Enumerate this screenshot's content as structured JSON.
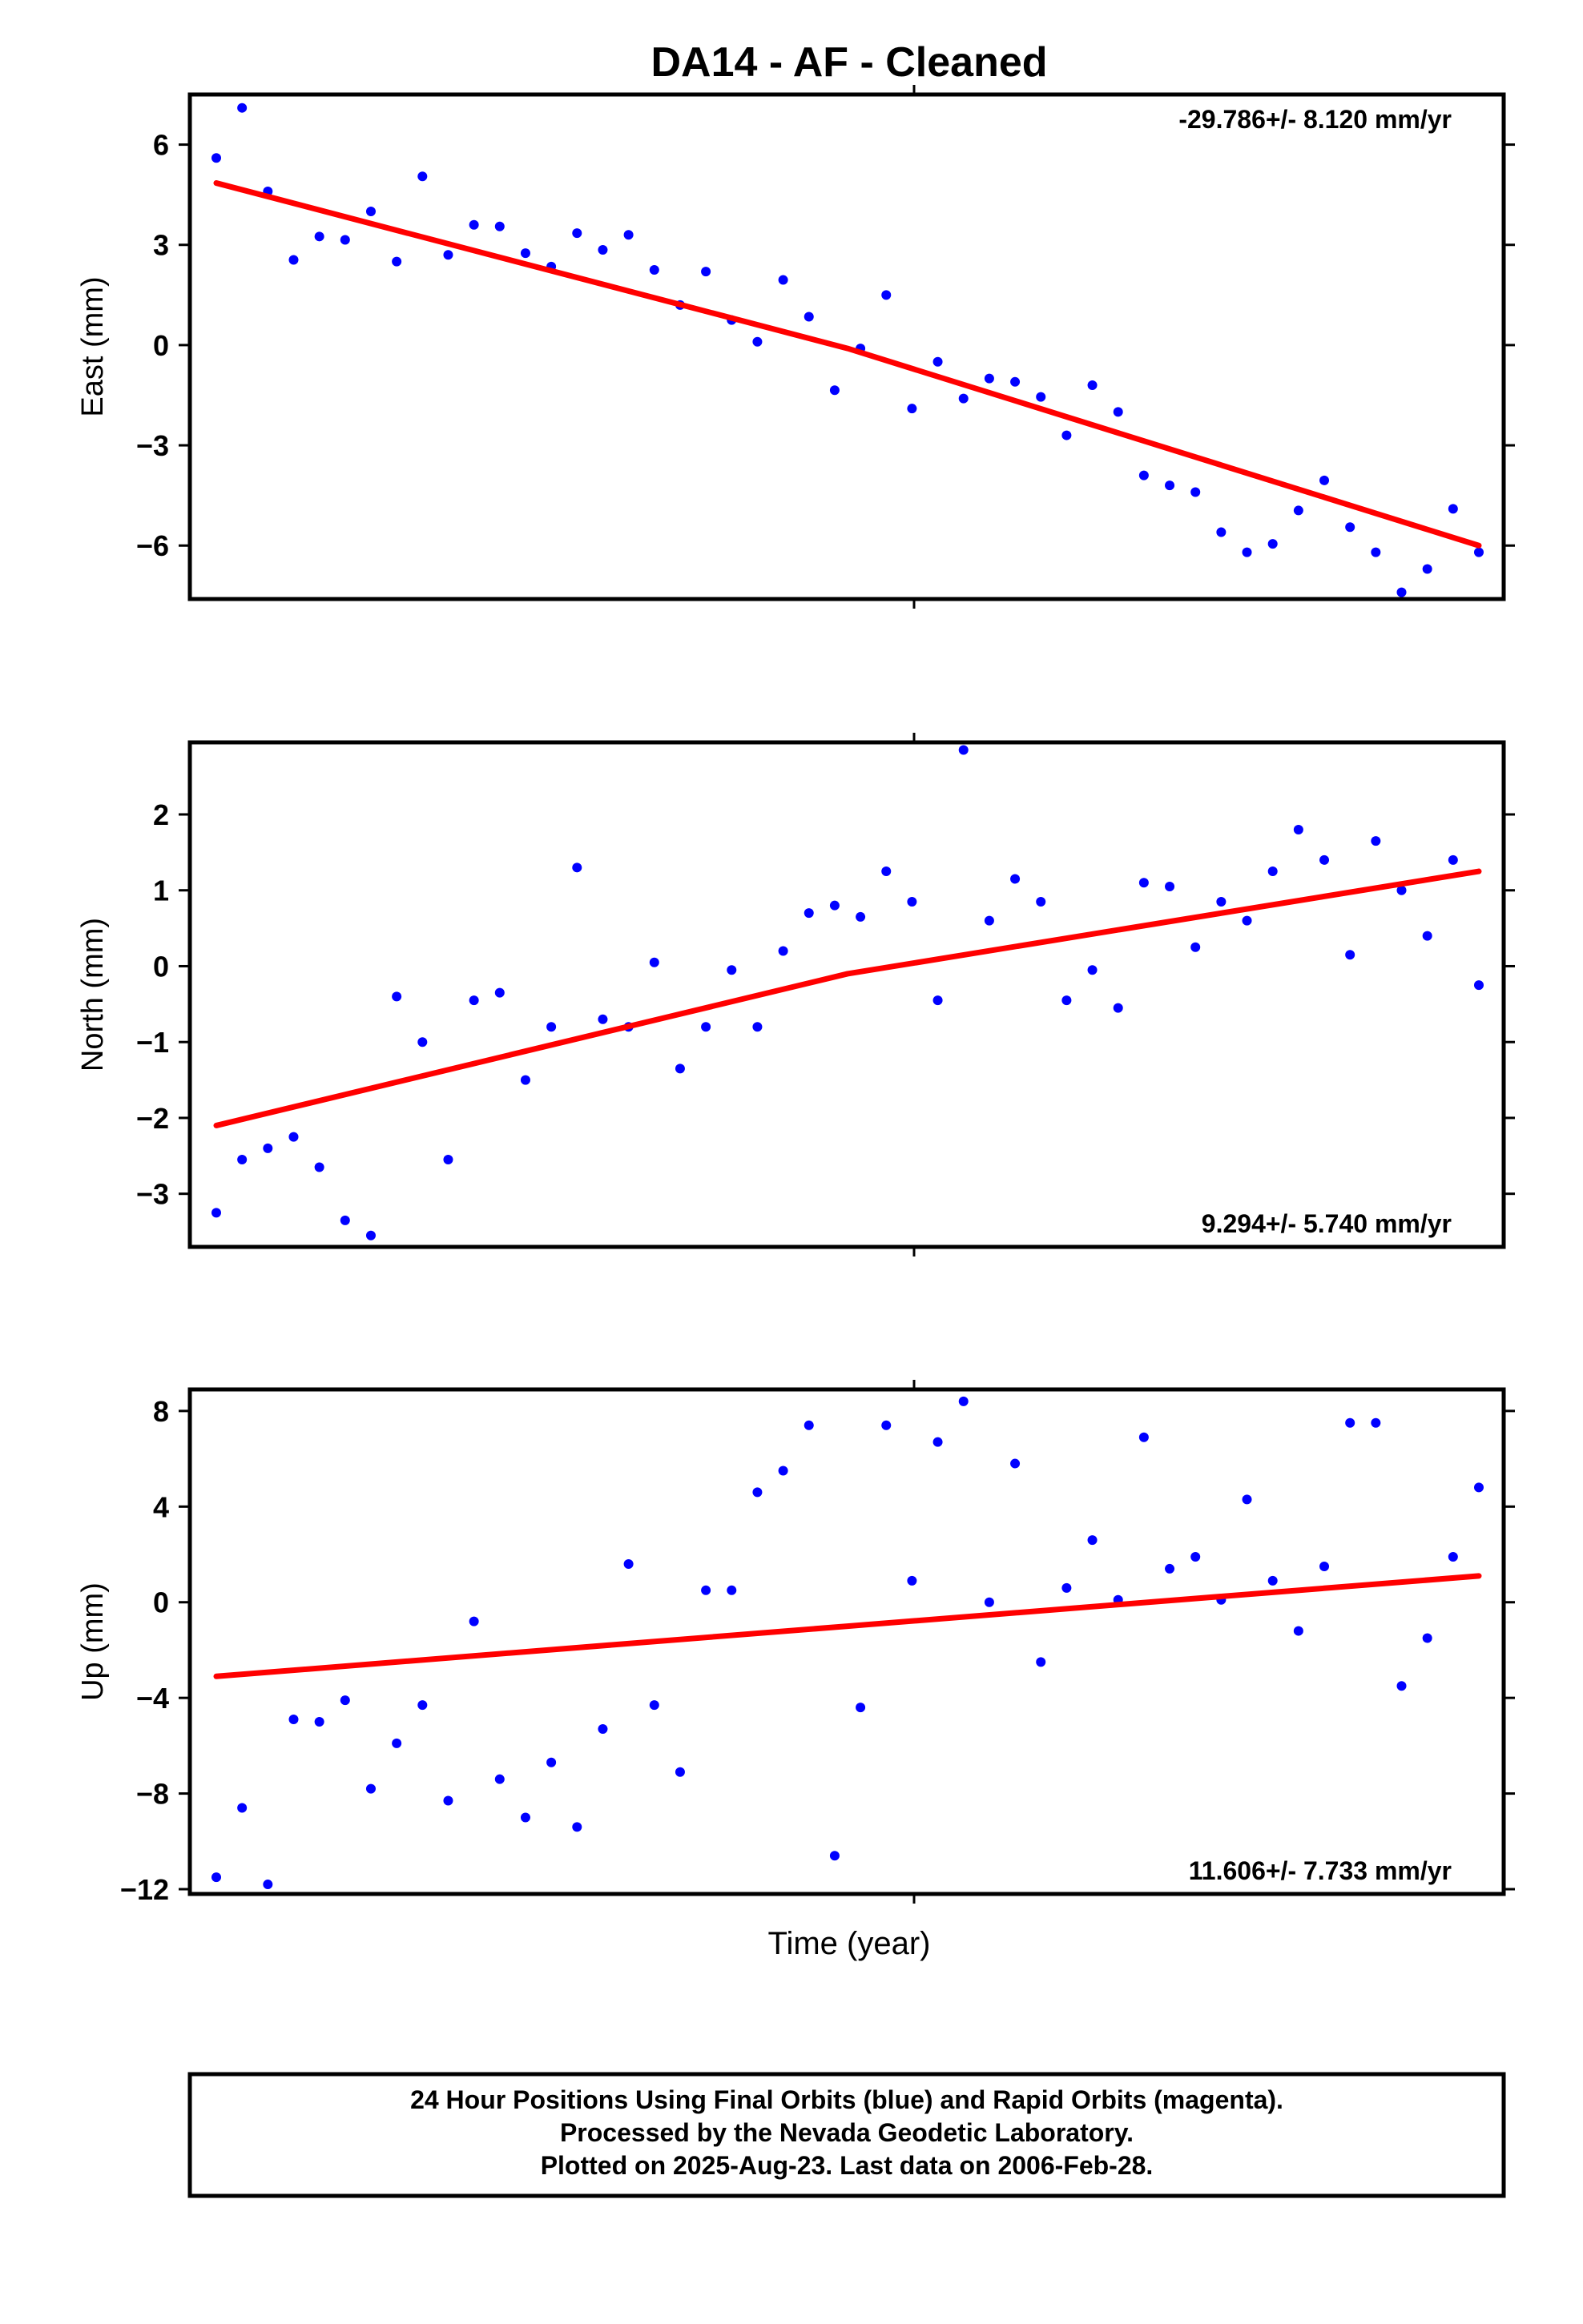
{
  "title": "DA14  - AF - Cleaned",
  "xlabel": "Time (year)",
  "footer": [
    "24 Hour Positions Using Final Orbits (blue) and Rapid Orbits (magenta).",
    "Processed by the Nevada Geodetic Laboratory.",
    "Plotted on 2025-Aug-23. Last data on 2006-Feb-28."
  ],
  "colors": {
    "points": "#0000ff",
    "fit": "#ff0000",
    "frame": "#000000"
  },
  "chart_data": [
    {
      "type": "scatter",
      "panel": "east",
      "ylabel": "East (mm)",
      "ylim": [
        -7.6,
        7.5
      ],
      "yticks": [
        6,
        3,
        0,
        -3,
        -6
      ],
      "ytick_labels": [
        "6",
        "3",
        "0",
        "−3",
        "−6"
      ],
      "rate_label": "-29.786+/- 8.120 mm/yr",
      "rate_position": "top-right",
      "x_index": [
        0,
        1,
        2,
        3,
        4,
        5,
        6,
        7,
        8,
        9,
        10,
        11,
        12,
        13,
        14,
        15,
        16,
        17,
        18,
        19,
        20,
        21,
        22,
        23,
        24,
        25,
        26,
        27,
        28,
        29,
        30,
        31,
        32,
        33,
        34,
        35,
        36,
        37,
        38,
        39,
        40,
        41,
        42,
        43,
        44,
        45,
        46,
        47,
        48,
        49
      ],
      "y": [
        5.6,
        7.1,
        4.6,
        2.55,
        3.25,
        3.15,
        4.0,
        2.5,
        5.05,
        2.7,
        3.6,
        3.55,
        2.75,
        2.35,
        3.35,
        2.85,
        3.3,
        2.25,
        1.2,
        2.2,
        0.75,
        0.1,
        1.95,
        0.85,
        -1.35,
        -0.1,
        1.5,
        -1.9,
        -0.5,
        -1.6,
        -1.0,
        -1.1,
        -1.55,
        -2.7,
        -1.2,
        -2.0,
        -3.9,
        -4.2,
        -4.4,
        -5.6,
        -6.2,
        -5.95,
        -4.95,
        -4.05,
        -5.45,
        -6.2,
        -7.4,
        -6.7,
        -4.9,
        -6.2
      ],
      "fit": {
        "x_index": [
          0,
          24.5,
          49
        ],
        "y": [
          4.85,
          -0.1,
          -6.0
        ]
      }
    },
    {
      "type": "scatter",
      "panel": "north",
      "ylabel": "North (mm)",
      "ylim": [
        -3.7,
        2.95
      ],
      "yticks": [
        2,
        1,
        0,
        -1,
        -2,
        -3
      ],
      "ytick_labels": [
        "2",
        "1",
        "0",
        "−1",
        "−2",
        "−3"
      ],
      "rate_label": "9.294+/- 5.740 mm/yr",
      "rate_position": "bottom-right",
      "x_index": [
        0,
        1,
        2,
        3,
        4,
        5,
        6,
        7,
        8,
        9,
        10,
        11,
        12,
        13,
        14,
        15,
        16,
        17,
        18,
        19,
        20,
        21,
        22,
        23,
        24,
        25,
        26,
        27,
        28,
        29,
        30,
        31,
        32,
        33,
        34,
        35,
        36,
        37,
        38,
        39,
        40,
        41,
        42,
        43,
        44,
        45,
        46,
        47,
        48,
        49
      ],
      "y": [
        -3.25,
        -2.55,
        -2.4,
        -2.25,
        -2.65,
        -3.35,
        -3.55,
        -0.4,
        -1.0,
        -2.55,
        -0.45,
        -0.35,
        -1.5,
        -0.8,
        1.3,
        -0.7,
        -0.8,
        0.05,
        -1.35,
        -0.8,
        -0.05,
        -0.8,
        0.2,
        0.7,
        0.8,
        0.65,
        1.25,
        0.85,
        -0.45,
        2.85,
        0.6,
        1.15,
        0.85,
        -0.45,
        -0.05,
        -0.55,
        1.1,
        1.05,
        0.25,
        0.85,
        0.6,
        1.25,
        1.8,
        1.4,
        0.15,
        1.65,
        1.0,
        0.4,
        1.4,
        -0.25
      ],
      "fit": {
        "x_index": [
          0,
          24.5,
          49
        ],
        "y": [
          -2.1,
          -0.1,
          1.25
        ]
      }
    },
    {
      "type": "scatter",
      "panel": "up",
      "ylabel": "Up (mm)",
      "ylim": [
        -12.2,
        8.9
      ],
      "yticks": [
        8,
        4,
        0,
        -4,
        -8,
        -12
      ],
      "ytick_labels": [
        "8",
        "4",
        "0",
        "−4",
        "−8",
        "−12"
      ],
      "rate_label": "11.606+/- 7.733 mm/yr",
      "rate_position": "bottom-right",
      "x_index": [
        0,
        1,
        2,
        3,
        4,
        5,
        6,
        7,
        8,
        9,
        10,
        11,
        12,
        13,
        14,
        15,
        16,
        17,
        18,
        19,
        20,
        21,
        22,
        23,
        24,
        25,
        26,
        27,
        28,
        29,
        30,
        31,
        32,
        33,
        34,
        35,
        36,
        37,
        38,
        39,
        40,
        41,
        42,
        43,
        44,
        45,
        46,
        47,
        48,
        49
      ],
      "y": [
        -11.5,
        -8.6,
        -11.8,
        -4.9,
        -5.0,
        -4.1,
        -7.8,
        -5.9,
        -4.3,
        -8.3,
        -0.8,
        -7.4,
        -9.0,
        -6.7,
        -9.4,
        -5.3,
        1.6,
        -4.3,
        -7.1,
        0.5,
        0.5,
        4.6,
        5.5,
        7.4,
        -10.6,
        -4.4,
        7.4,
        0.9,
        6.7,
        8.4,
        0.0,
        5.8,
        -2.5,
        0.6,
        2.6,
        0.1,
        6.9,
        1.4,
        1.9,
        0.1,
        4.3,
        0.9,
        -1.2,
        1.5,
        7.5,
        7.5,
        -3.5,
        -1.5,
        1.9,
        4.8
      ],
      "fit": {
        "x_index": [
          0,
          24.5,
          49
        ],
        "y": [
          -3.1,
          -1.0,
          1.1
        ]
      }
    }
  ]
}
